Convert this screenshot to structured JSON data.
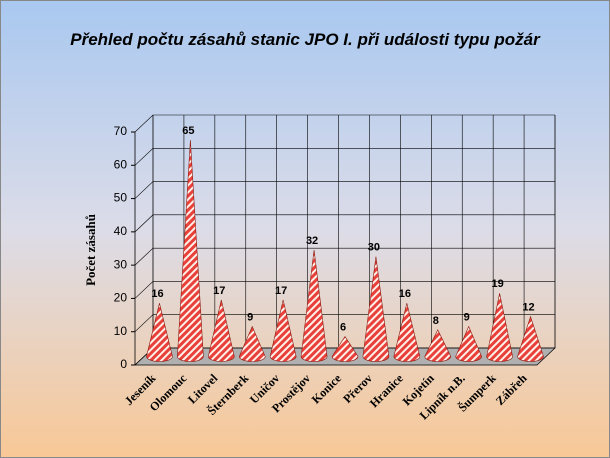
{
  "chart_data": {
    "type": "cone3d",
    "title": "Přehled počtu zásahů stanic JPO I. při události typu požár",
    "y_label": "Počet zásahů",
    "categories": [
      "Jeseník",
      "Olomouc",
      "Litovel",
      "Šternberk",
      "Uničov",
      "Prostějov",
      "Konice",
      "Přerov",
      "Hranice",
      "Kojetín",
      "Lipník n.B.",
      "Šumperk",
      "Zábřeh"
    ],
    "values": [
      16,
      65,
      17,
      9,
      17,
      32,
      6,
      30,
      16,
      8,
      9,
      19,
      12
    ],
    "color": "#e8403a",
    "ylim": [
      0,
      70
    ],
    "yticks": [
      0,
      10,
      20,
      30,
      40,
      50,
      60,
      70
    ],
    "grid": true
  }
}
